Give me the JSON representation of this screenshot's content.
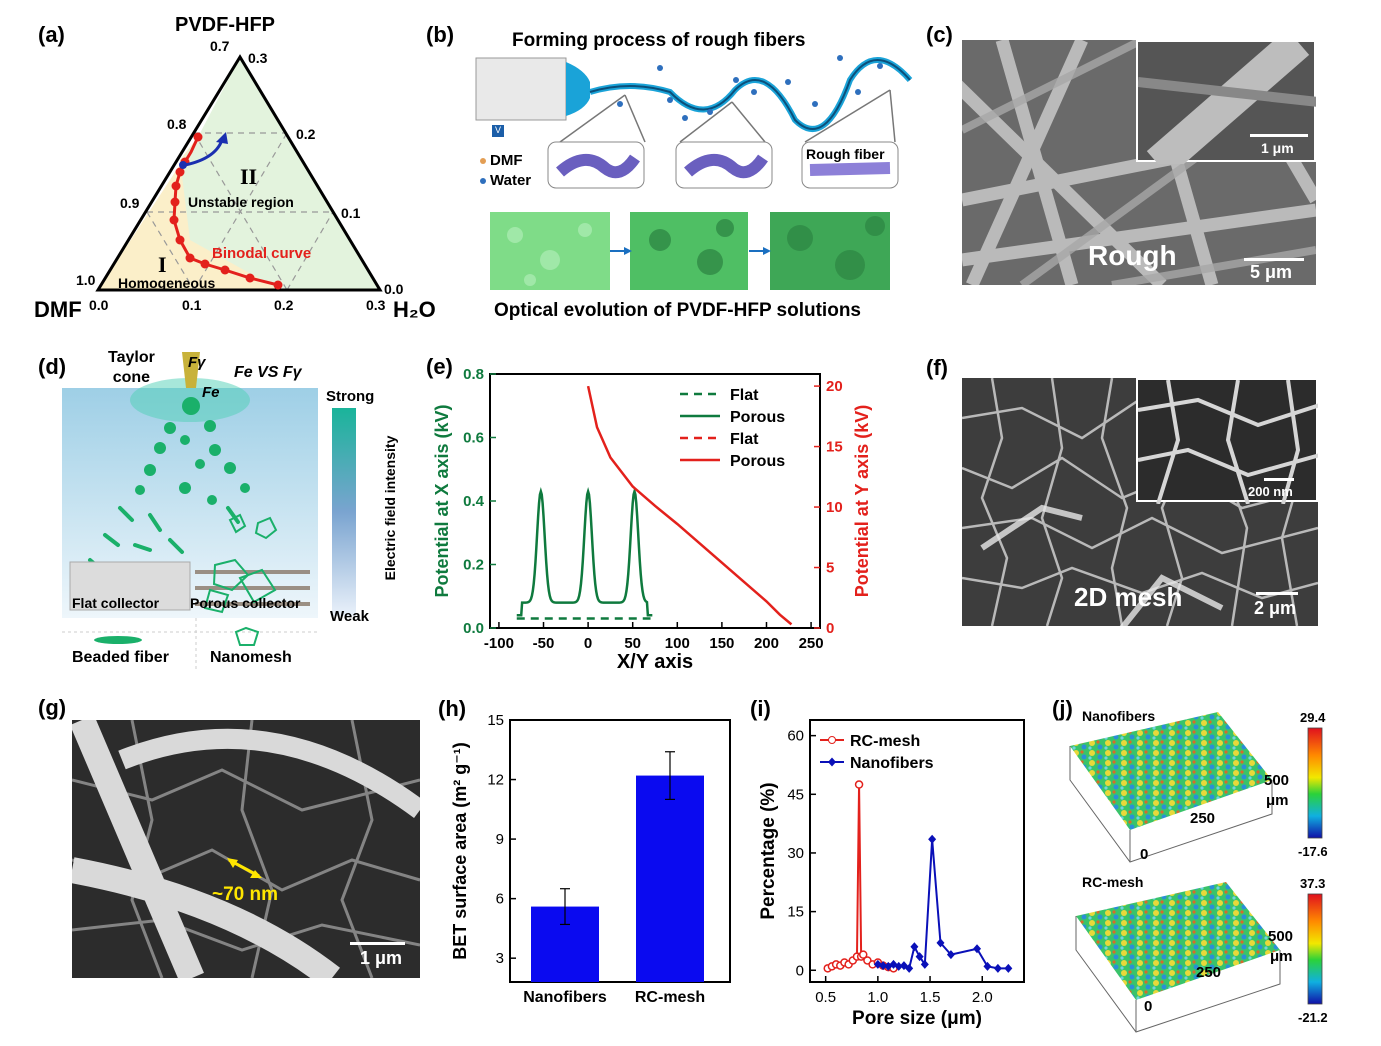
{
  "panel_labels": {
    "a": "(a)",
    "b": "(b)",
    "c": "(c)",
    "d": "(d)",
    "e": "(e)",
    "f": "(f)",
    "g": "(g)",
    "h": "(h)",
    "i": "(i)",
    "j": "(j)"
  },
  "a": {
    "top": "PVDF-HFP",
    "left": "DMF",
    "right": "H₂O",
    "left_ticks": [
      "0.7",
      "0.8",
      "0.9",
      "1.0"
    ],
    "right_ticks": [
      "0.3",
      "0.2",
      "0.1",
      "0.0"
    ],
    "bottom_ticks": [
      "0.0",
      "0.1",
      "0.2",
      "0.3"
    ],
    "region2_numeral": "II",
    "region2_text": "Unstable region",
    "region1_numeral": "I",
    "region1_text": "Homogeneous",
    "curve_label": "Binodal curve",
    "colors": {
      "curve": "#e3211c",
      "arrow": "#1b2fb0",
      "stable_fill": "#fbefc9",
      "unstable_fill": "#e3f3dd"
    }
  },
  "b": {
    "title": "Forming process of rough fibers",
    "legend_dmf": "DMF",
    "legend_water": "Water",
    "voltage": "V",
    "fiber_label": "Rough fiber",
    "caption": "Optical evolution of PVDF-HFP solutions"
  },
  "c": {
    "label": "Rough",
    "scale": "5 μm",
    "inset_scale": "1 μm"
  },
  "d": {
    "cone": "Taylor\ncone",
    "fgamma": "Fγ",
    "fe": "Fe",
    "versus": "Fe VS Fγ",
    "strong": "Strong",
    "weak": "Weak",
    "bar_label": "Electric field intensity",
    "flat": "Flat collector",
    "porous": "Porous collector",
    "beaded": "Beaded fiber",
    "nanomesh": "Nanomesh"
  },
  "chart_data": [
    {
      "id": "e",
      "type": "line",
      "xlabel": "X/Y axis",
      "ylabel": "Potential at X axis (kV)",
      "y2label": "Potential at Y axis (kV)",
      "xlim": [
        -110,
        260
      ],
      "ylim": [
        0,
        0.8
      ],
      "y2lim": [
        0,
        21
      ],
      "xticks": [
        -100,
        -50,
        0,
        50,
        100,
        150,
        200,
        250
      ],
      "yticks": [
        0.0,
        0.2,
        0.4,
        0.6,
        0.8
      ],
      "y2ticks": [
        0,
        5,
        10,
        15,
        20
      ],
      "series": [
        {
          "name": "Flat",
          "axis": "left",
          "style": "dashed",
          "color": "#0f7a3e",
          "x": [
            -80,
            70
          ],
          "y": [
            0.03,
            0.03
          ]
        },
        {
          "name": "Porous",
          "axis": "left",
          "style": "solid",
          "color": "#0f7a3e",
          "peaks": [
            -53,
            0,
            52
          ],
          "peak_height": 0.43,
          "baseline": 0.08,
          "x_range": [
            -80,
            72
          ]
        },
        {
          "name": "Flat",
          "axis": "right",
          "style": "dashed",
          "color": "#e3211c",
          "x": [],
          "y": []
        },
        {
          "name": "Porous",
          "axis": "right",
          "style": "solid",
          "color": "#e3211c",
          "x": [
            0,
            10,
            25,
            50,
            75,
            100,
            125,
            150,
            175,
            200,
            215,
            228
          ],
          "y": [
            20,
            16.6,
            14.1,
            11.7,
            10.1,
            8.6,
            7.0,
            5.4,
            3.8,
            2.2,
            1.1,
            0.3
          ]
        }
      ],
      "legend": "top-right"
    },
    {
      "id": "h",
      "type": "bar",
      "ylabel": "BET surface area (m² g⁻¹)",
      "categories": [
        "Nanofibers",
        "RC-mesh"
      ],
      "values": [
        5.6,
        12.2
      ],
      "errors": [
        0.9,
        1.2
      ],
      "ylim": [
        1.8,
        15
      ],
      "yticks": [
        3,
        6,
        9,
        12,
        15
      ],
      "color": "#0a0af0"
    },
    {
      "id": "i",
      "type": "line",
      "xlabel": "Pore size (μm)",
      "ylabel": "Percentage (%)",
      "xlim": [
        0.35,
        2.4
      ],
      "ylim": [
        -3,
        64
      ],
      "xticks": [
        0.5,
        1.0,
        1.5,
        2.0
      ],
      "yticks": [
        0,
        15,
        30,
        45,
        60
      ],
      "series": [
        {
          "name": "RC-mesh",
          "color": "#e3211c",
          "marker": "circle",
          "x": [
            0.52,
            0.56,
            0.6,
            0.64,
            0.68,
            0.72,
            0.76,
            0.8,
            0.82,
            0.84,
            0.86,
            0.9,
            0.95,
            1.0,
            1.05,
            1.1,
            1.15
          ],
          "y": [
            0.5,
            1.0,
            1.5,
            1.2,
            2.0,
            1.5,
            2.5,
            3.5,
            47.5,
            3.5,
            4.0,
            2.5,
            1.5,
            2.0,
            1.2,
            0.8,
            0.5
          ]
        },
        {
          "name": "Nanofibers",
          "color": "#0a10b8",
          "marker": "diamond",
          "x": [
            1.0,
            1.05,
            1.1,
            1.15,
            1.2,
            1.25,
            1.3,
            1.35,
            1.4,
            1.45,
            1.52,
            1.6,
            1.7,
            1.95,
            2.05,
            2.15,
            2.25
          ],
          "y": [
            1.5,
            1.2,
            1.0,
            1.5,
            1.0,
            1.2,
            0.5,
            6.0,
            3.5,
            1.5,
            33.5,
            7.0,
            4.0,
            5.5,
            1.0,
            0.5,
            0.5
          ]
        }
      ],
      "legend": "top-left"
    }
  ],
  "f": {
    "label": "2D mesh",
    "scale": "2 μm",
    "inset_scale": "200 nm"
  },
  "g": {
    "annotation": "~70 nm",
    "scale": "1 μm"
  },
  "j": {
    "top_title": "Nanofibers",
    "top_max": "29.4",
    "top_min": "-17.6",
    "bottom_title": "RC-mesh",
    "bottom_max": "37.3",
    "bottom_min": "-21.2",
    "axis_500": "500",
    "axis_um": "μm",
    "axis_250": "250",
    "axis_0": "0"
  }
}
